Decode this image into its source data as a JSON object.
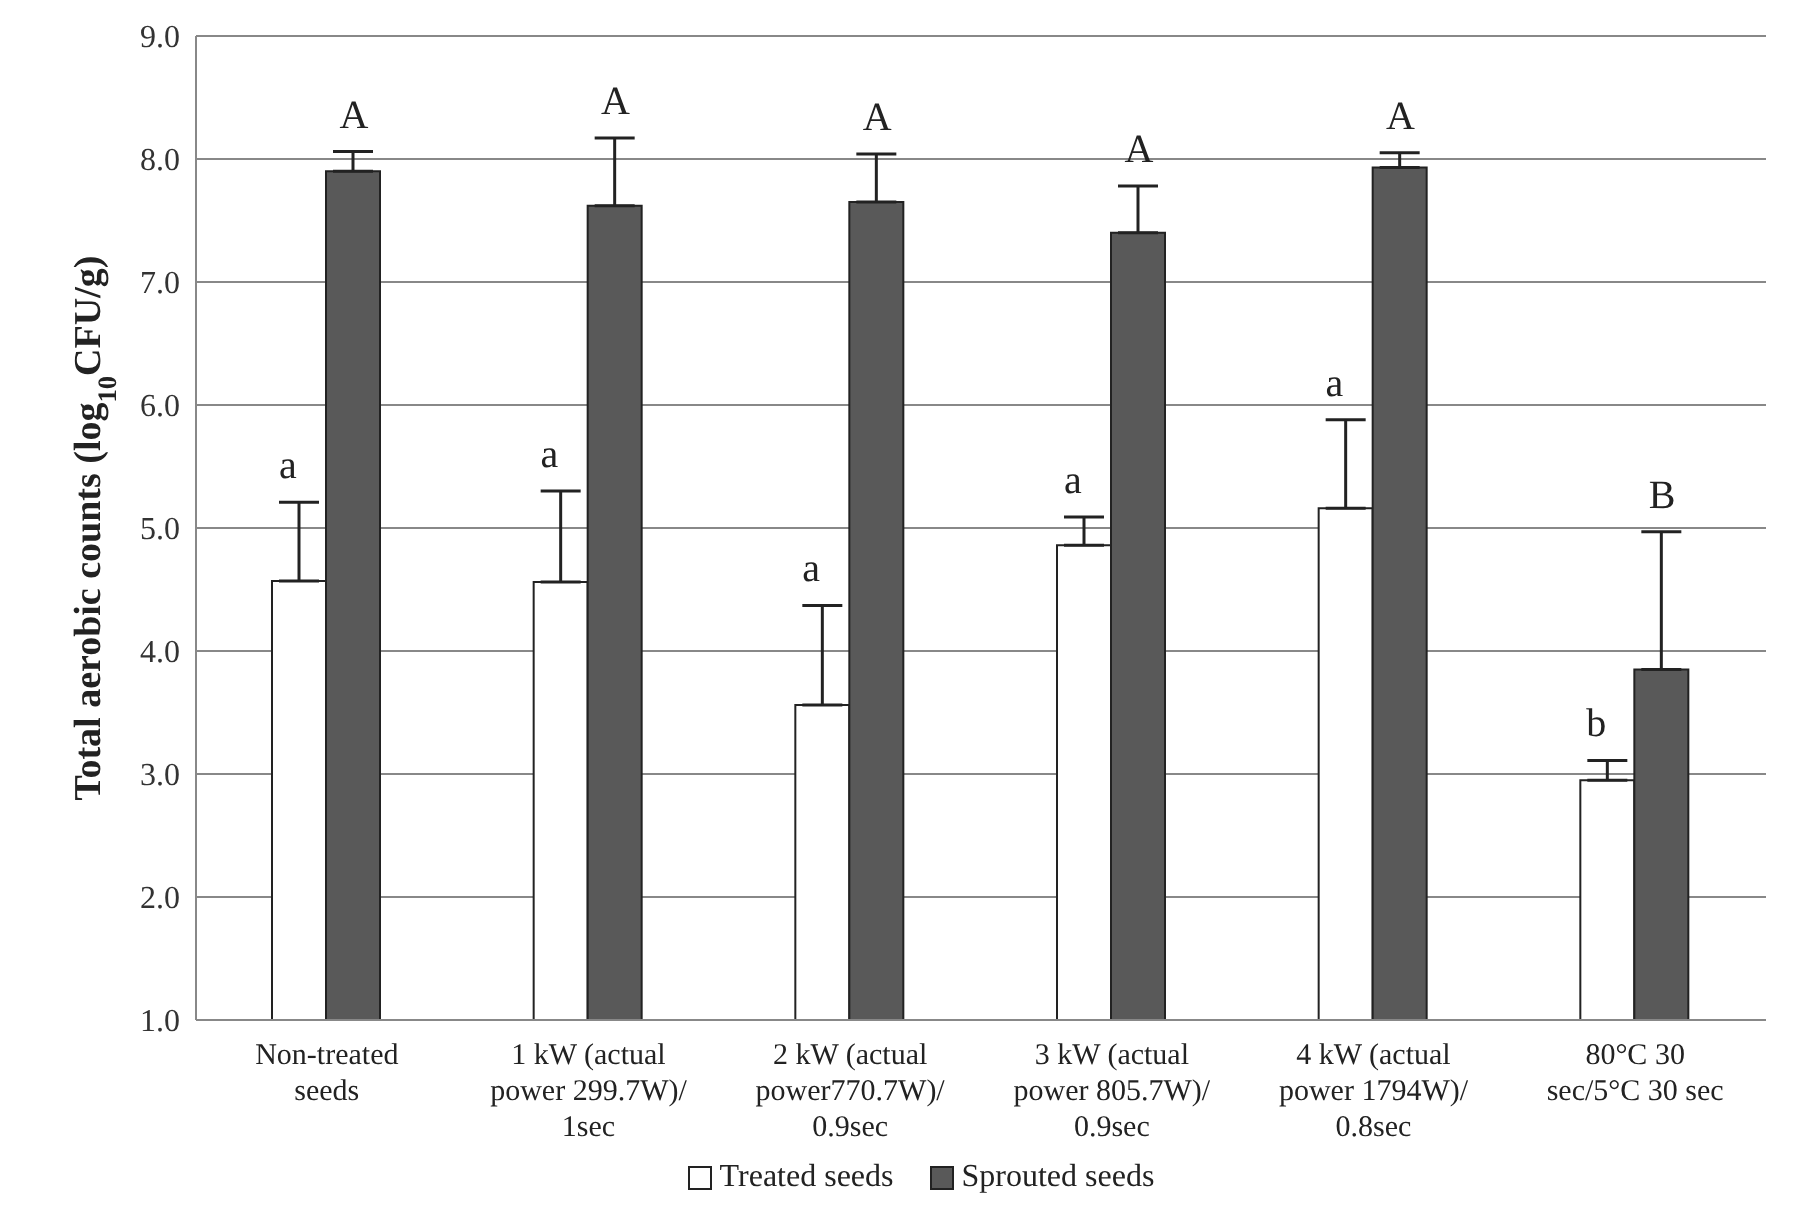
{
  "chart_data": {
    "type": "bar",
    "ylabel": "Total aerobic counts (log$_{10}$CFU/g)",
    "categories": [
      "Non-treated seeds",
      "1 kW (actual power 299.7W)/ 1sec",
      "2 kW (actual power770.7W)/ 0.9sec",
      "3 kW (actual power 805.7W)/ 0.9sec",
      "4 kW (actual power 1794W)/ 0.8sec",
      "80°C 30 sec/5°C 30 sec"
    ],
    "series": [
      {
        "name": "Treated seeds",
        "color": "#ffffff",
        "values": [
          4.57,
          4.56,
          3.56,
          4.86,
          5.16,
          2.95
        ],
        "errors": [
          [
            4.57,
            5.21
          ],
          [
            4.56,
            5.3
          ],
          [
            3.56,
            4.37
          ],
          [
            4.86,
            5.09
          ],
          [
            5.16,
            5.88
          ],
          [
            2.95,
            3.11
          ]
        ]
      },
      {
        "name": "Sprouted seeds",
        "color": "#595959",
        "values": [
          7.9,
          7.62,
          7.65,
          7.4,
          7.93,
          3.85
        ],
        "errors": [
          [
            7.9,
            8.06
          ],
          [
            7.62,
            8.17
          ],
          [
            7.65,
            8.04
          ],
          [
            7.4,
            7.78
          ],
          [
            7.93,
            8.05
          ],
          [
            3.85,
            4.97
          ]
        ]
      }
    ],
    "annotations": [
      {
        "text": "a",
        "x": "Non-treated seeds",
        "y": 5.21
      },
      {
        "text": "A",
        "x": "Non-treated seeds",
        "y": 8.06
      },
      {
        "text": "a",
        "x": "1 kW (actual power 299.7W)/ 1sec",
        "y": 5.3
      },
      {
        "text": "A",
        "x": "1 kW (actual power 299.7W)/ 1sec",
        "y": 8.17
      },
      {
        "text": "a",
        "x": "2 kW (actual power770.7W)/ 0.9sec",
        "y": 4.37
      },
      {
        "text": "A",
        "x": "2 kW (actual power770.7W)/ 0.9sec",
        "y": 8.04
      },
      {
        "text": "a",
        "x": "3 kW (actual power 805.7W)/ 0.9sec",
        "y": 5.09
      },
      {
        "text": "A",
        "x": "3 kW (actual power 805.7W)/ 0.9sec",
        "y": 7.78
      },
      {
        "text": "a",
        "x": "4 kW (actual power 1794W)/ 0.8sec",
        "y": 5.88
      },
      {
        "text": "A",
        "x": "4 kW (actual power 1794W)/ 0.8sec",
        "y": 8.05
      },
      {
        "text": "b",
        "x": "80°C 30 sec/5°C 30 sec",
        "y": 3.11
      },
      {
        "text": "B",
        "x": "80°C 30 sec/5°C 30 sec",
        "y": 4.97
      }
    ],
    "ylim": [
      1,
      9
    ],
    "yticks": [
      {
        "value": 1,
        "label": "1.0"
      },
      {
        "value": 2,
        "label": "2.0"
      },
      {
        "value": 3,
        "label": "3.0"
      },
      {
        "value": 4,
        "label": "4.0"
      },
      {
        "value": 5,
        "label": "5.0"
      },
      {
        "value": 6,
        "label": "6.0"
      },
      {
        "value": 7,
        "label": "7.0"
      },
      {
        "value": 8,
        "label": "8.0"
      },
      {
        "value": 9,
        "label": "9.0"
      }
    ],
    "grid": "y",
    "legend": "bottom"
  }
}
